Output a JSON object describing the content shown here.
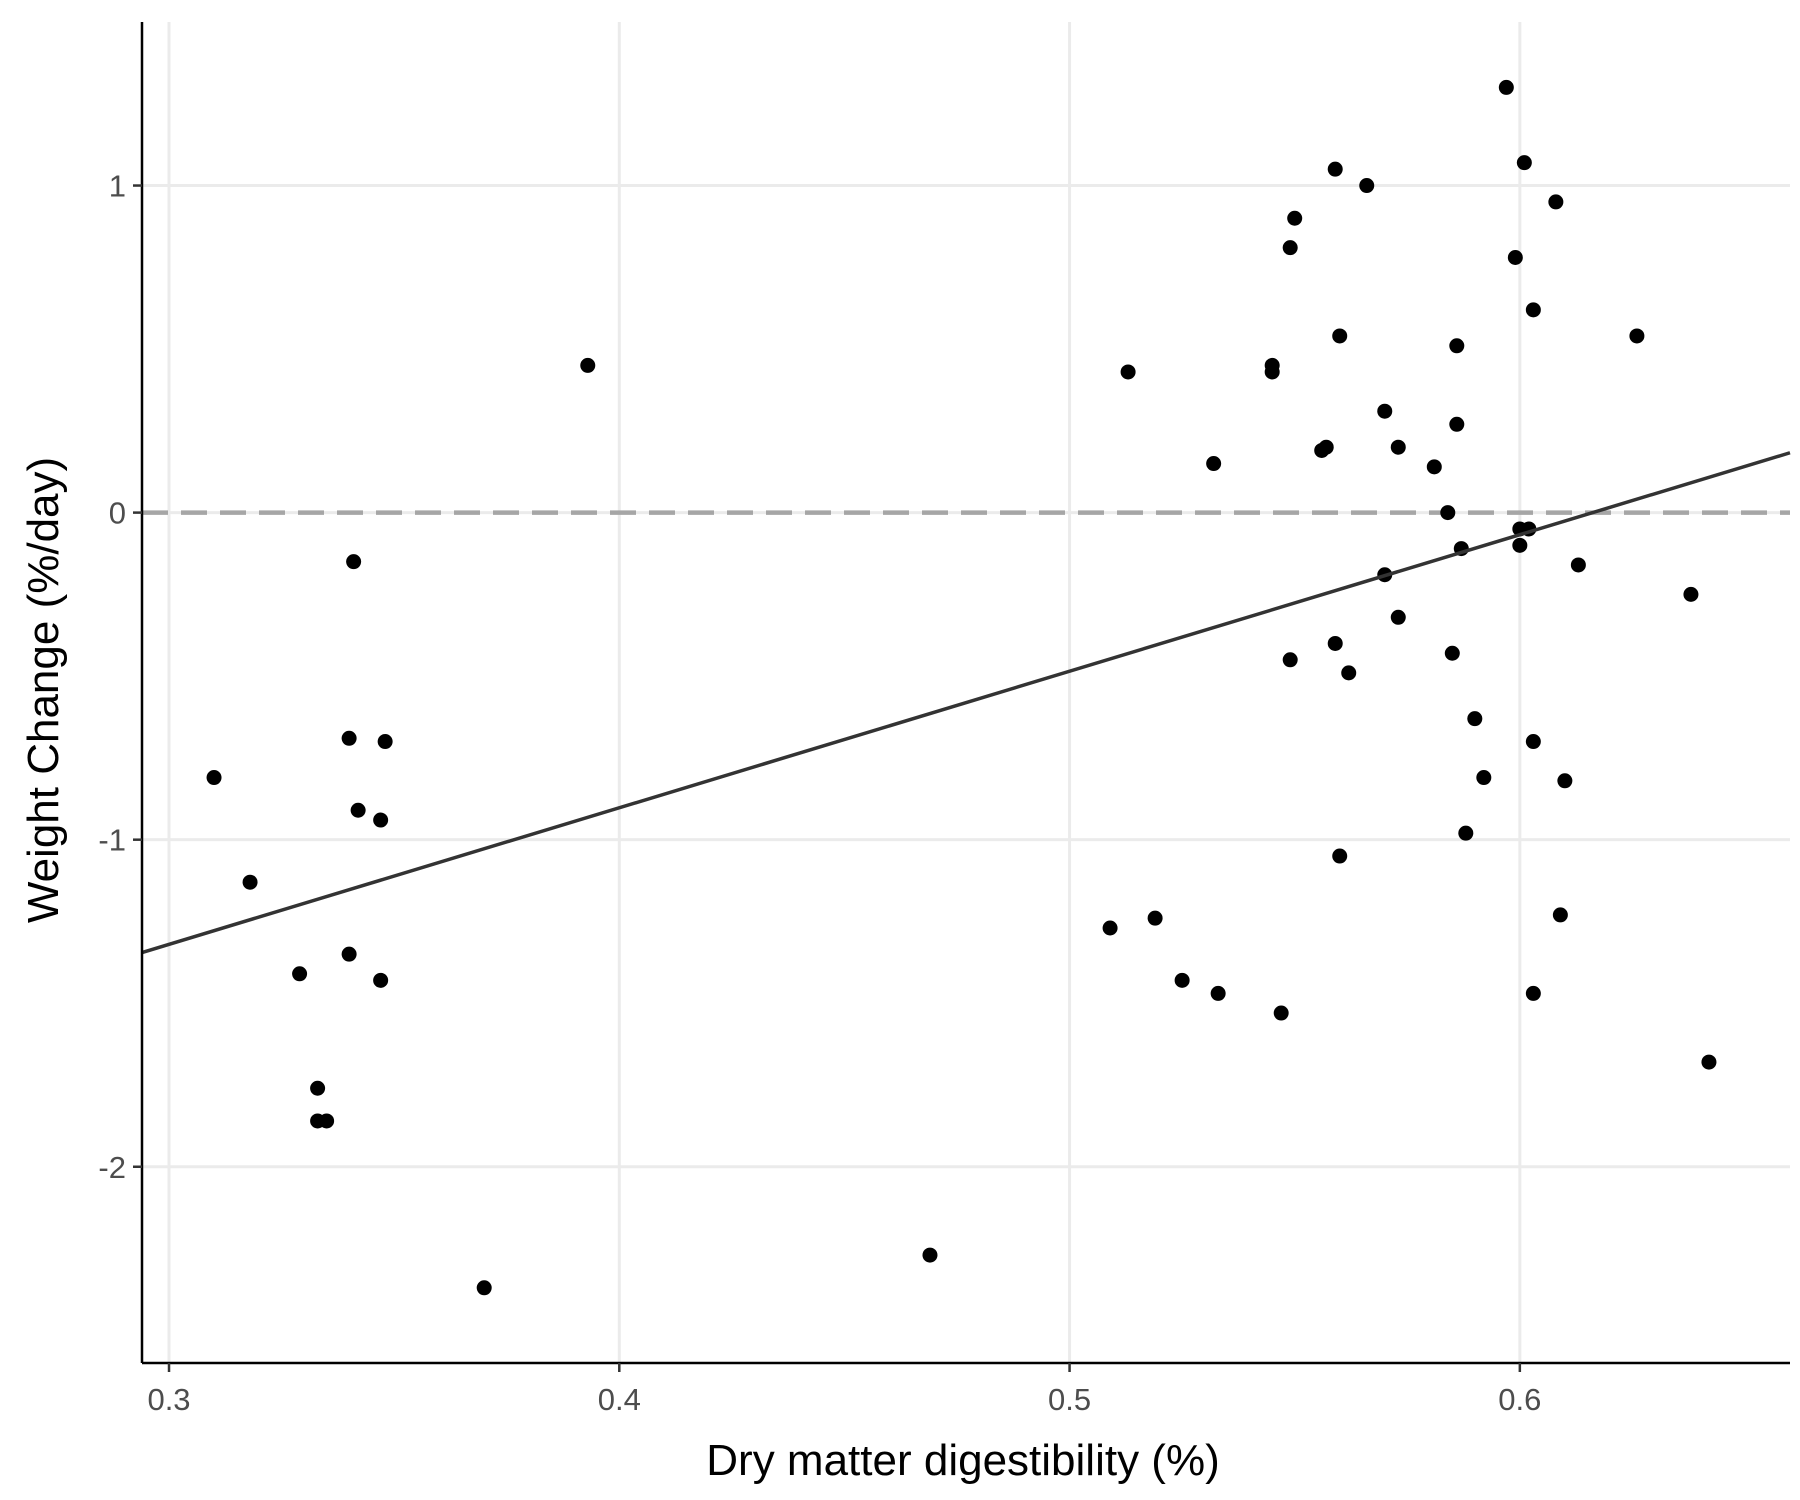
{
  "chart_data": {
    "type": "scatter",
    "xlabel": "Dry matter digestibility (%)",
    "ylabel": "Weight Change (%/day)",
    "xlim": [
      0.294,
      0.66
    ],
    "ylim": [
      -2.6,
      1.5
    ],
    "x_ticks": [
      0.3,
      0.4,
      0.5,
      0.6
    ],
    "x_tick_labels": [
      "0.3",
      "0.4",
      "0.5",
      "0.6"
    ],
    "y_ticks": [
      -2,
      -1,
      0,
      1
    ],
    "y_tick_labels": [
      "-2",
      "-1",
      "0",
      "1"
    ],
    "grid": true,
    "reference_line": {
      "y": 0,
      "style": "dashed"
    },
    "trend_line": {
      "x": [
        0.294,
        0.66
      ],
      "y": [
        -1.345,
        0.183
      ]
    },
    "points": [
      {
        "x": 0.31,
        "y": -0.81
      },
      {
        "x": 0.318,
        "y": -1.13
      },
      {
        "x": 0.329,
        "y": -1.41
      },
      {
        "x": 0.333,
        "y": -1.76
      },
      {
        "x": 0.333,
        "y": -1.86
      },
      {
        "x": 0.335,
        "y": -1.86
      },
      {
        "x": 0.34,
        "y": -0.69
      },
      {
        "x": 0.34,
        "y": -1.35
      },
      {
        "x": 0.341,
        "y": -0.15
      },
      {
        "x": 0.342,
        "y": -0.91
      },
      {
        "x": 0.347,
        "y": -0.94
      },
      {
        "x": 0.347,
        "y": -1.43
      },
      {
        "x": 0.348,
        "y": -0.7
      },
      {
        "x": 0.37,
        "y": -2.37
      },
      {
        "x": 0.393,
        "y": 0.45
      },
      {
        "x": 0.469,
        "y": -2.27
      },
      {
        "x": 0.509,
        "y": -1.27
      },
      {
        "x": 0.513,
        "y": 0.43
      },
      {
        "x": 0.519,
        "y": -1.24
      },
      {
        "x": 0.525,
        "y": -1.43
      },
      {
        "x": 0.532,
        "y": 0.15
      },
      {
        "x": 0.533,
        "y": -1.47
      },
      {
        "x": 0.545,
        "y": 0.45
      },
      {
        "x": 0.545,
        "y": 0.43
      },
      {
        "x": 0.547,
        "y": -1.53
      },
      {
        "x": 0.549,
        "y": 0.81
      },
      {
        "x": 0.549,
        "y": -0.45
      },
      {
        "x": 0.55,
        "y": 0.9
      },
      {
        "x": 0.556,
        "y": 0.19
      },
      {
        "x": 0.557,
        "y": 0.2
      },
      {
        "x": 0.559,
        "y": 1.05
      },
      {
        "x": 0.559,
        "y": -0.4
      },
      {
        "x": 0.56,
        "y": 0.54
      },
      {
        "x": 0.56,
        "y": -1.05
      },
      {
        "x": 0.562,
        "y": -0.49
      },
      {
        "x": 0.566,
        "y": 1.0
      },
      {
        "x": 0.57,
        "y": 0.31
      },
      {
        "x": 0.57,
        "y": -0.19
      },
      {
        "x": 0.573,
        "y": 0.2
      },
      {
        "x": 0.573,
        "y": -0.32
      },
      {
        "x": 0.581,
        "y": 0.14
      },
      {
        "x": 0.584,
        "y": 0.0
      },
      {
        "x": 0.585,
        "y": -0.43
      },
      {
        "x": 0.586,
        "y": 0.51
      },
      {
        "x": 0.586,
        "y": 0.27
      },
      {
        "x": 0.587,
        "y": -0.11
      },
      {
        "x": 0.588,
        "y": -0.98
      },
      {
        "x": 0.59,
        "y": -0.63
      },
      {
        "x": 0.592,
        "y": -0.81
      },
      {
        "x": 0.597,
        "y": 1.3
      },
      {
        "x": 0.599,
        "y": 0.78
      },
      {
        "x": 0.6,
        "y": -0.1
      },
      {
        "x": 0.6,
        "y": -0.05
      },
      {
        "x": 0.601,
        "y": 1.07
      },
      {
        "x": 0.602,
        "y": -0.05
      },
      {
        "x": 0.603,
        "y": -0.7
      },
      {
        "x": 0.603,
        "y": 0.62
      },
      {
        "x": 0.603,
        "y": -1.47
      },
      {
        "x": 0.608,
        "y": 0.95
      },
      {
        "x": 0.609,
        "y": -1.23
      },
      {
        "x": 0.61,
        "y": -0.82
      },
      {
        "x": 0.613,
        "y": -0.16
      },
      {
        "x": 0.626,
        "y": 0.54
      },
      {
        "x": 0.638,
        "y": -0.25
      },
      {
        "x": 0.642,
        "y": -1.68
      }
    ]
  }
}
